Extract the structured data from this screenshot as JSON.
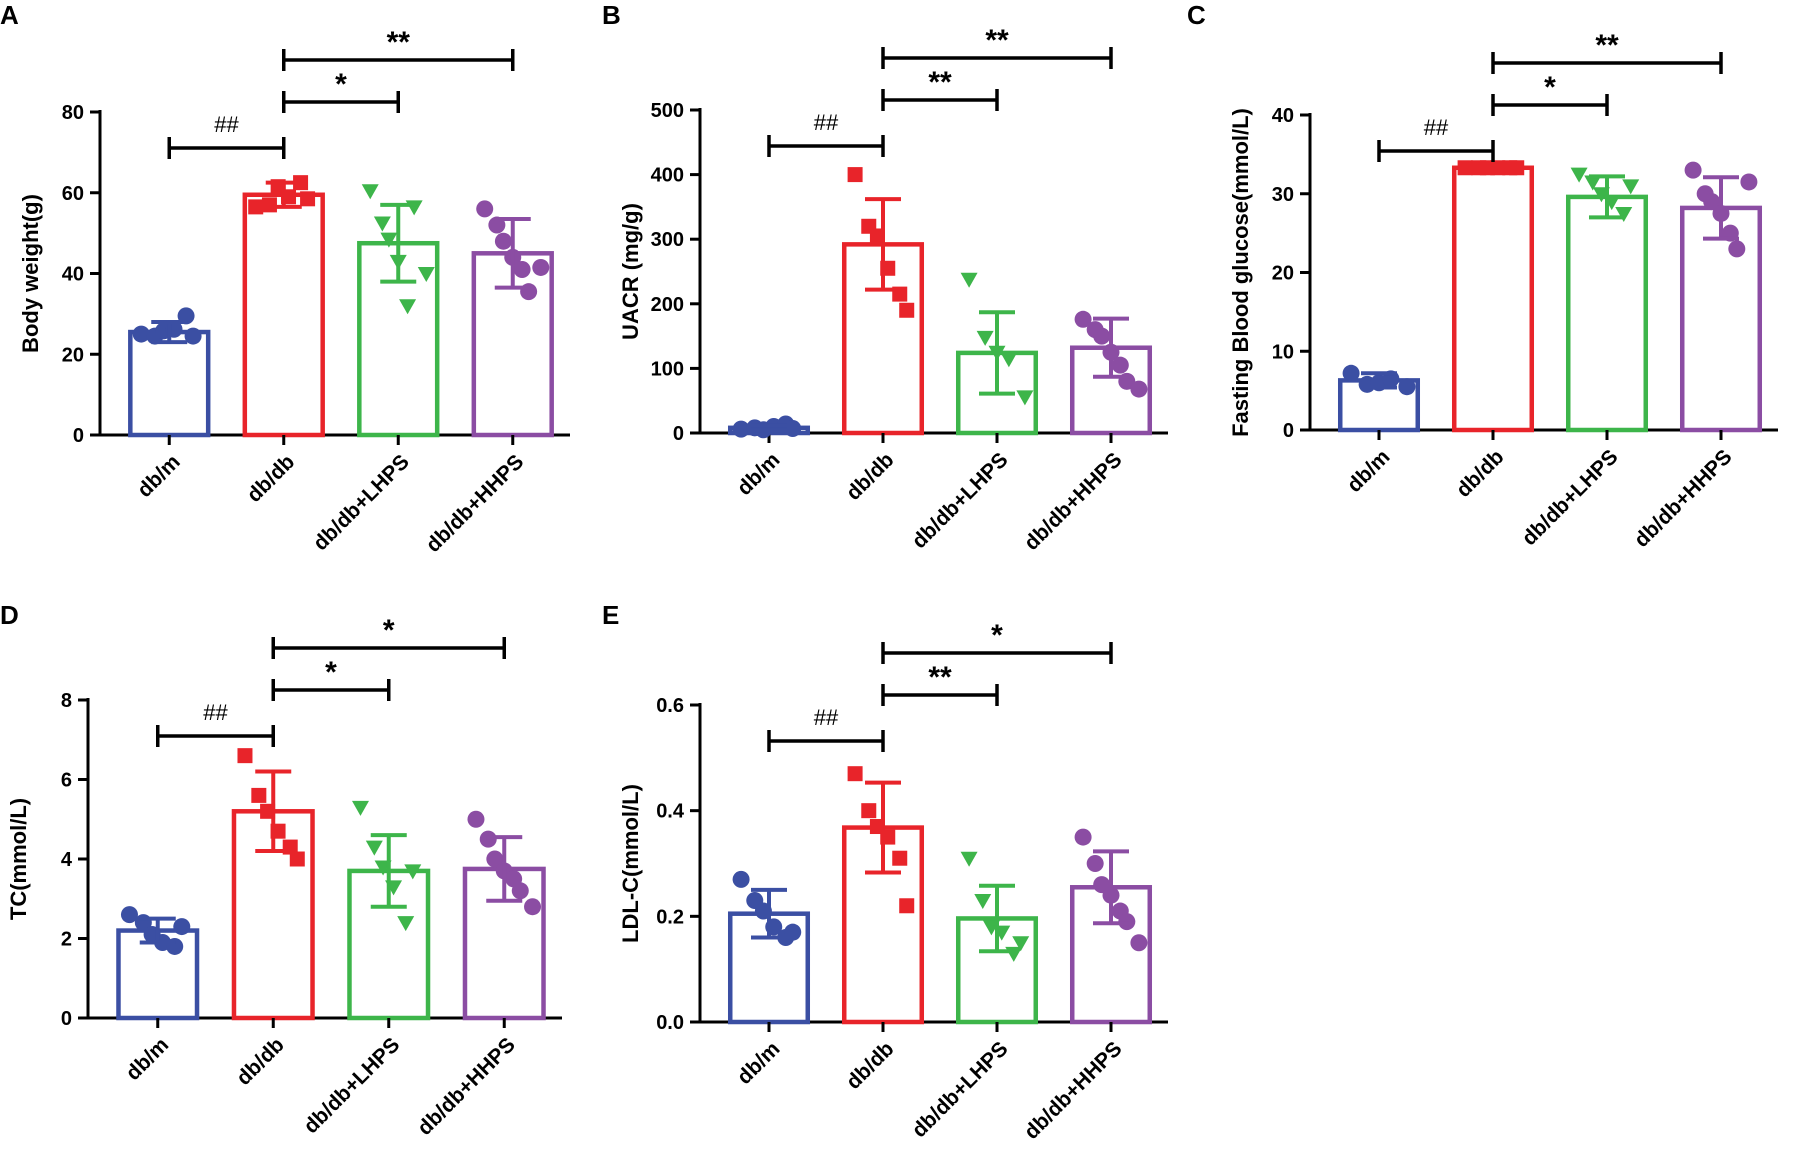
{
  "figure": {
    "colors": {
      "db/m": "#3B4FA3",
      "db/db": "#E8242A",
      "db/db+LHPS": "#3DB54A",
      "db/db+HHPS": "#8B4DA3"
    }
  },
  "chart_data": [
    {
      "panel": "A",
      "type": "bar",
      "ylabel": "Body weight(g)",
      "ylim": [
        0,
        80
      ],
      "yticks": [
        0,
        20,
        40,
        60,
        80
      ],
      "categories": [
        "db/m",
        "db/db",
        "db/db+LHPS",
        "db/db+HHPS"
      ],
      "values": [
        25.5,
        59.5,
        47.5,
        45
      ],
      "sd": [
        2.5,
        3,
        9.5,
        8.5
      ],
      "points": [
        [
          25,
          24.5,
          25.8,
          26.2,
          29.5,
          24.5
        ],
        [
          56.5,
          57,
          61.5,
          59,
          62.5,
          58.5
        ],
        [
          60.5,
          52.5,
          48.5,
          43,
          32,
          56.5,
          40
        ],
        [
          56,
          52,
          48,
          44,
          41,
          35.5,
          41.5
        ]
      ],
      "comparisons": [
        {
          "from": "db/m",
          "to": "db/db",
          "label": "##"
        },
        {
          "from": "db/db",
          "to": "db/db+LHPS",
          "label": "*"
        },
        {
          "from": "db/db",
          "to": "db/db+HHPS",
          "label": "**"
        }
      ]
    },
    {
      "panel": "B",
      "type": "bar",
      "ylabel": "UACR (mg/g)",
      "ylim": [
        0,
        500
      ],
      "yticks": [
        0,
        100,
        200,
        300,
        400,
        500
      ],
      "categories": [
        "db/m",
        "db/db",
        "db/db+LHPS",
        "db/db+HHPS"
      ],
      "values": [
        8,
        292,
        124,
        132
      ],
      "sd": [
        4,
        70,
        63,
        45
      ],
      "points": [
        [
          6,
          8,
          5,
          10,
          14,
          7
        ],
        [
          400,
          320,
          305,
          255,
          215,
          190
        ],
        [
          238,
          148,
          125,
          115,
          56
        ],
        [
          176,
          160,
          150,
          125,
          105,
          80,
          68
        ]
      ],
      "comparisons": [
        {
          "from": "db/m",
          "to": "db/db",
          "label": "##"
        },
        {
          "from": "db/db",
          "to": "db/db+LHPS",
          "label": "**"
        },
        {
          "from": "db/db",
          "to": "db/db+HHPS",
          "label": "**"
        }
      ]
    },
    {
      "panel": "C",
      "type": "bar",
      "ylabel": "Fasting Blood glucose(mmol/L)",
      "ylim": [
        0,
        40
      ],
      "yticks": [
        0,
        10,
        20,
        30,
        40
      ],
      "categories": [
        "db/m",
        "db/db",
        "db/db+LHPS",
        "db/db+HHPS"
      ],
      "values": [
        6.3,
        33.3,
        29.6,
        28.2
      ],
      "sd": [
        0.9,
        0.1,
        2.6,
        3.9
      ],
      "points": [
        [
          7.2,
          5.8,
          6,
          6.5,
          5.5
        ],
        [
          33.3,
          33.3,
          33.3,
          33.3,
          33.3,
          33.3
        ],
        [
          32.5,
          31.5,
          30,
          29,
          27.5,
          31
        ],
        [
          33,
          30,
          29,
          27.5,
          25,
          23,
          31.5
        ]
      ],
      "comparisons": [
        {
          "from": "db/m",
          "to": "db/db",
          "label": "##"
        },
        {
          "from": "db/db",
          "to": "db/db+LHPS",
          "label": "*"
        },
        {
          "from": "db/db",
          "to": "db/db+HHPS",
          "label": "**"
        }
      ]
    },
    {
      "panel": "D",
      "type": "bar",
      "ylabel": "TC(mmol/L)",
      "ylim": [
        0,
        8
      ],
      "yticks": [
        0,
        2,
        4,
        6,
        8
      ],
      "categories": [
        "db/m",
        "db/db",
        "db/db+LHPS",
        "db/db+HHPS"
      ],
      "values": [
        2.2,
        5.2,
        3.7,
        3.75
      ],
      "sd": [
        0.3,
        1.0,
        0.9,
        0.8
      ],
      "points": [
        [
          2.6,
          2.4,
          2.1,
          1.9,
          1.8,
          2.3
        ],
        [
          6.6,
          5.6,
          5.2,
          4.7,
          4.3,
          4.0
        ],
        [
          5.3,
          4.3,
          3.8,
          3.3,
          2.4,
          3.7
        ],
        [
          5.0,
          4.5,
          4.0,
          3.7,
          3.5,
          3.2,
          2.8
        ]
      ],
      "comparisons": [
        {
          "from": "db/m",
          "to": "db/db",
          "label": "##"
        },
        {
          "from": "db/db",
          "to": "db/db+LHPS",
          "label": "*"
        },
        {
          "from": "db/db",
          "to": "db/db+HHPS",
          "label": "*"
        }
      ]
    },
    {
      "panel": "E",
      "type": "bar",
      "ylabel": "LDL-C(mmol/L)",
      "ylim": [
        0,
        0.6
      ],
      "yticks": [
        0.0,
        0.2,
        0.4,
        0.6
      ],
      "categories": [
        "db/m",
        "db/db",
        "db/db+LHPS",
        "db/db+HHPS"
      ],
      "values": [
        0.205,
        0.368,
        0.196,
        0.255
      ],
      "sd": [
        0.045,
        0.085,
        0.062,
        0.068
      ],
      "points": [
        [
          0.27,
          0.23,
          0.21,
          0.18,
          0.16,
          0.17
        ],
        [
          0.47,
          0.4,
          0.37,
          0.35,
          0.31,
          0.22
        ],
        [
          0.31,
          0.23,
          0.18,
          0.17,
          0.13,
          0.15
        ],
        [
          0.35,
          0.3,
          0.26,
          0.24,
          0.21,
          0.19,
          0.15
        ]
      ],
      "comparisons": [
        {
          "from": "db/m",
          "to": "db/db",
          "label": "##"
        },
        {
          "from": "db/db",
          "to": "db/db+LHPS",
          "label": "**"
        },
        {
          "from": "db/db",
          "to": "db/db+HHPS",
          "label": "*"
        }
      ]
    }
  ]
}
